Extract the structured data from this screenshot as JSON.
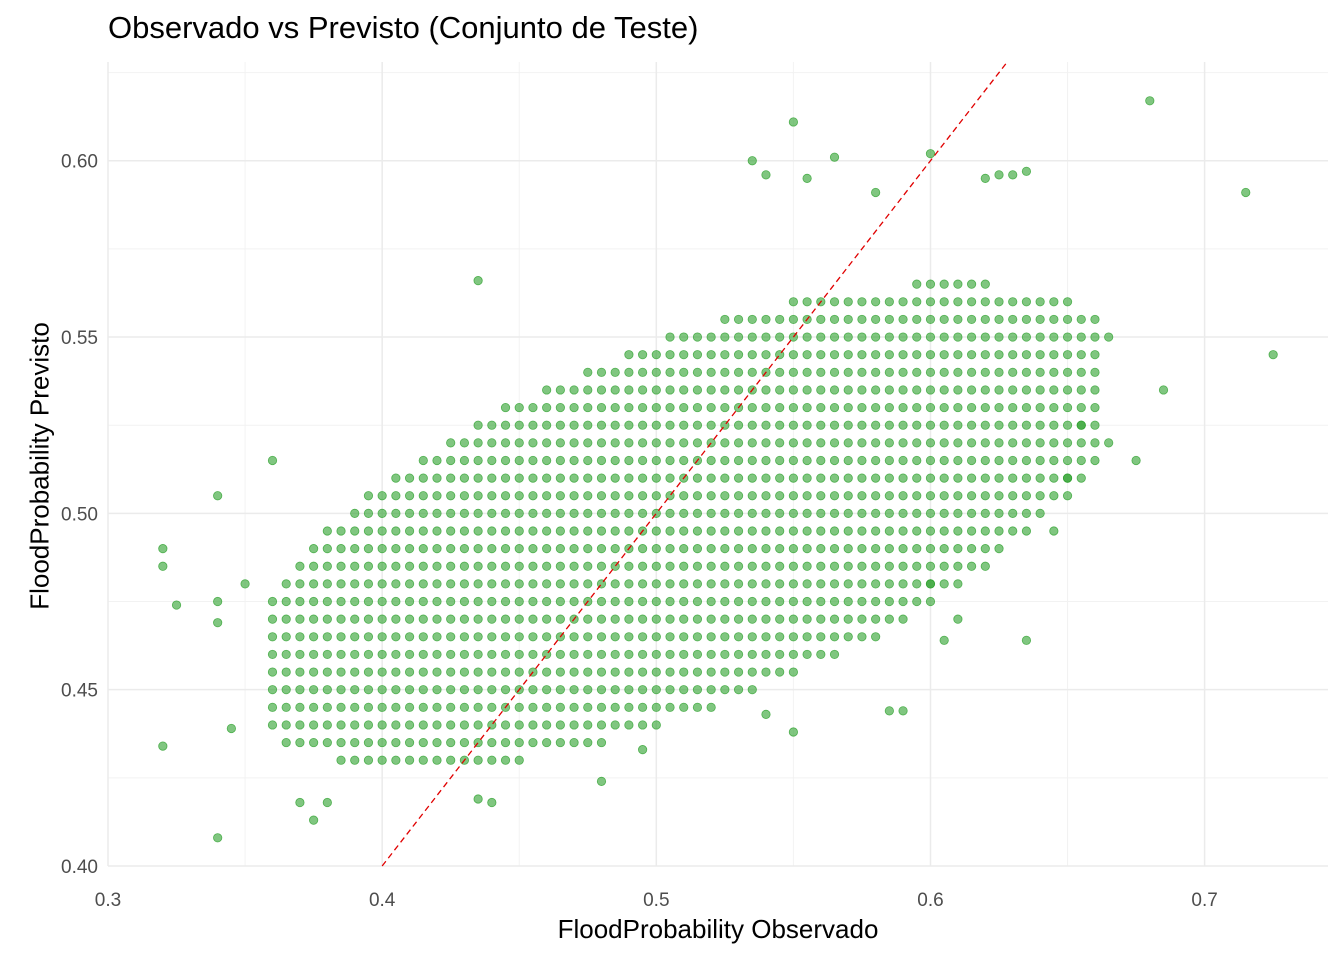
{
  "chart_data": {
    "type": "scatter",
    "title": "Observado vs Previsto (Conjunto de Teste)",
    "xlabel": "FloodProbability Observado",
    "ylabel": "FloodProbability Previsto",
    "xlim": [
      0.3,
      0.745
    ],
    "ylim": [
      0.4,
      0.628
    ],
    "xticks": [
      "0.3",
      "0.4",
      "0.5",
      "0.6",
      "0.7"
    ],
    "yticks": [
      "0.40",
      "0.45",
      "0.50",
      "0.55",
      "0.60"
    ],
    "grid": true,
    "point_color": "#2ca02c",
    "reference_line": {
      "type": "y=x",
      "color": "#e00000",
      "style": "dashed"
    },
    "bulk_region": {
      "description": "dense grid of points (x step 0.005, y step 0.005) filling an elliptical band",
      "x_range": [
        0.36,
        0.66
      ],
      "y_range": [
        0.425,
        0.585
      ],
      "trend_y_at_x": [
        [
          0.36,
          0.458
        ],
        [
          0.66,
          0.535
        ]
      ],
      "spread_y": 0.055
    },
    "points": [
      [
        0.32,
        0.49
      ],
      [
        0.32,
        0.485
      ],
      [
        0.325,
        0.474
      ],
      [
        0.32,
        0.434
      ],
      [
        0.34,
        0.408
      ],
      [
        0.34,
        0.505
      ],
      [
        0.34,
        0.475
      ],
      [
        0.34,
        0.469
      ],
      [
        0.345,
        0.439
      ],
      [
        0.35,
        0.48
      ],
      [
        0.36,
        0.515
      ],
      [
        0.37,
        0.418
      ],
      [
        0.375,
        0.413
      ],
      [
        0.38,
        0.418
      ],
      [
        0.435,
        0.566
      ],
      [
        0.435,
        0.419
      ],
      [
        0.44,
        0.418
      ],
      [
        0.48,
        0.424
      ],
      [
        0.495,
        0.433
      ],
      [
        0.535,
        0.6
      ],
      [
        0.54,
        0.596
      ],
      [
        0.55,
        0.611
      ],
      [
        0.565,
        0.601
      ],
      [
        0.555,
        0.595
      ],
      [
        0.58,
        0.591
      ],
      [
        0.6,
        0.602
      ],
      [
        0.62,
        0.595
      ],
      [
        0.625,
        0.596
      ],
      [
        0.63,
        0.596
      ],
      [
        0.635,
        0.597
      ],
      [
        0.68,
        0.617
      ],
      [
        0.715,
        0.591
      ],
      [
        0.725,
        0.545
      ],
      [
        0.685,
        0.535
      ],
      [
        0.665,
        0.55
      ],
      [
        0.675,
        0.515
      ],
      [
        0.665,
        0.52
      ],
      [
        0.655,
        0.525
      ],
      [
        0.65,
        0.51
      ],
      [
        0.645,
        0.495
      ],
      [
        0.635,
        0.464
      ],
      [
        0.605,
        0.464
      ],
      [
        0.59,
        0.444
      ],
      [
        0.585,
        0.444
      ],
      [
        0.55,
        0.438
      ],
      [
        0.54,
        0.443
      ],
      [
        0.6,
        0.48
      ],
      [
        0.61,
        0.47
      ]
    ]
  }
}
